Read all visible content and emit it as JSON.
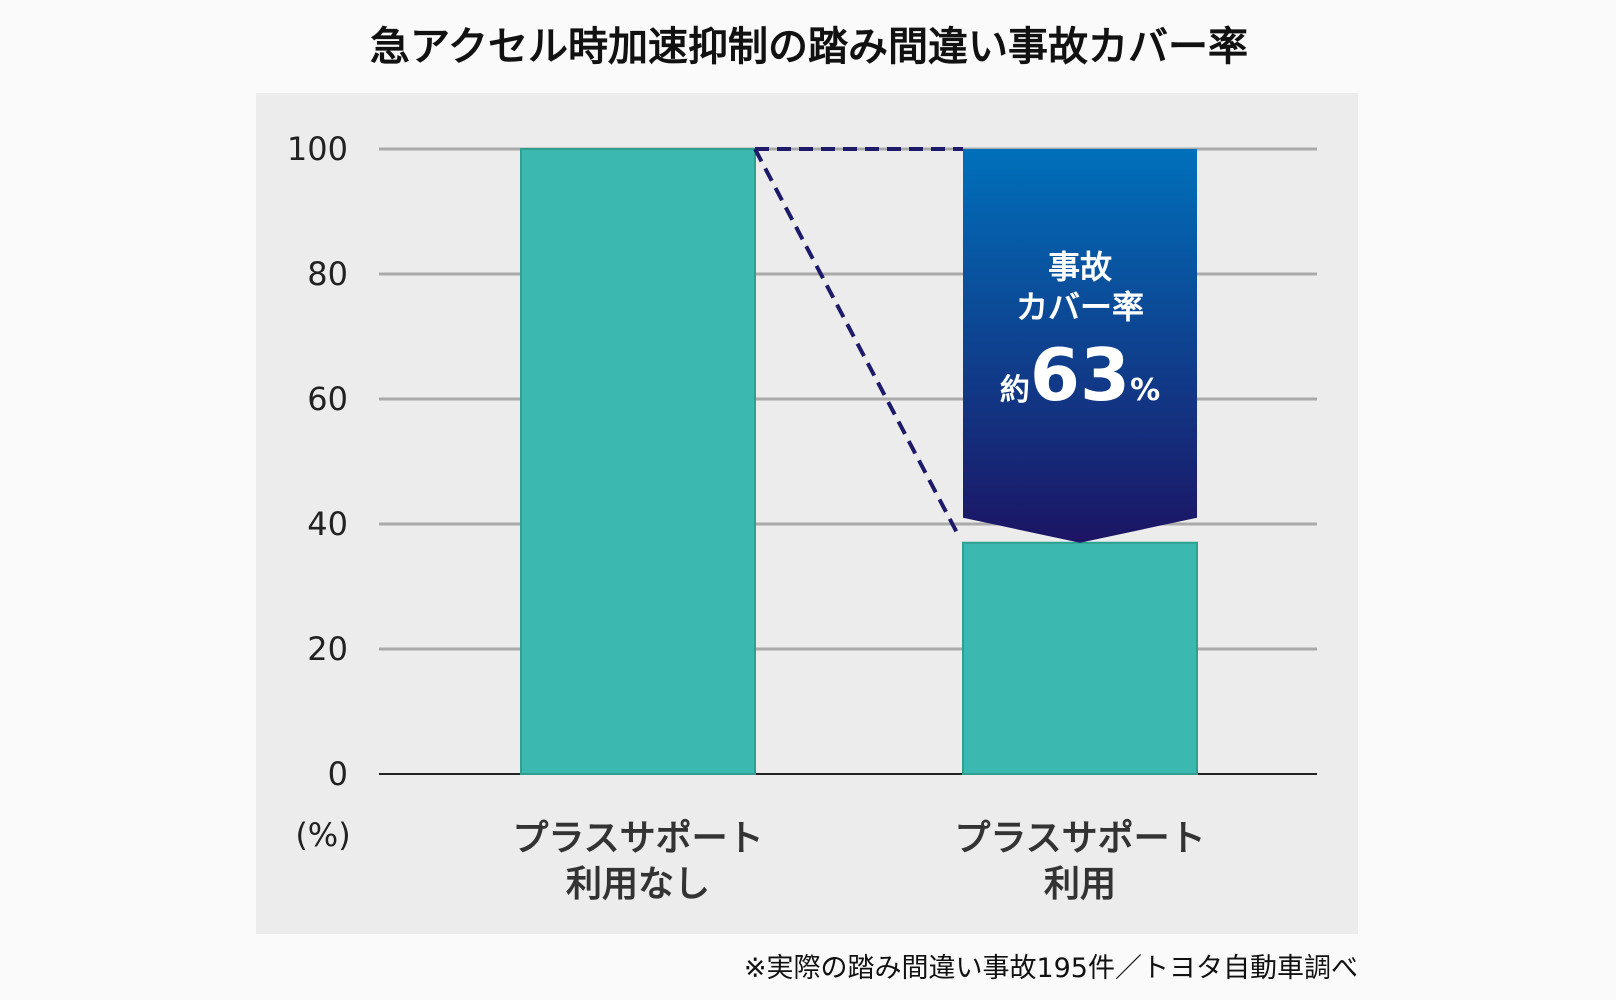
{
  "chart_data": {
    "type": "bar",
    "title": "急アクセル時加速抑制の踏み間違い事故カバー率",
    "categories": [
      "プラスサポート\n利用なし",
      "プラスサポート\n利用"
    ],
    "category_lines": [
      [
        "プラスサポート",
        "利用なし"
      ],
      [
        "プラスサポート",
        "利用"
      ]
    ],
    "values": [
      100,
      37
    ],
    "ylabel": "(%)",
    "ylim": [
      0,
      100
    ],
    "yticks": [
      0,
      20,
      40,
      60,
      80,
      100
    ],
    "grid": true,
    "annotation": {
      "line1": "事故",
      "line2": "カバー率",
      "prefix": "約",
      "value": "63",
      "unit": "%",
      "from": 100,
      "to": 37
    },
    "footnote": "※実際の踏み間違い事故195件／トヨタ自動車調べ",
    "colors": {
      "bar": "#3bb8b0",
      "bar_edge": "#2fa08f",
      "arrow_top": "#0070bb",
      "arrow_bottom": "#1c1464",
      "dash": "#1e1a6a",
      "panel": "#ececec"
    }
  }
}
